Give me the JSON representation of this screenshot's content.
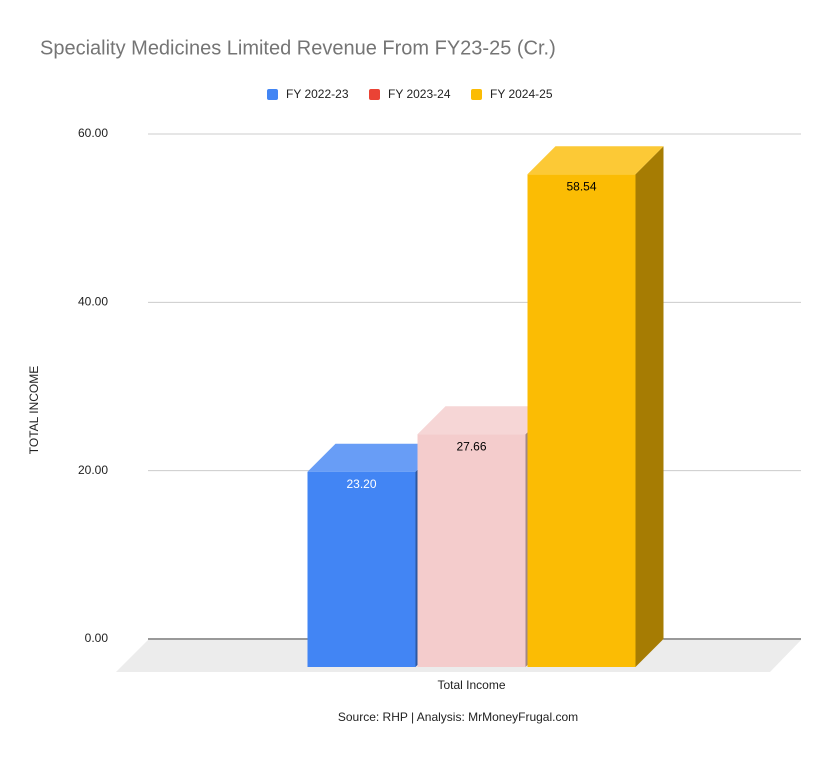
{
  "chart_data": {
    "type": "bar3d",
    "title": "Speciality Medicines Limited Revenue From FY23-25 (Cr.)",
    "ylabel": "TOTAL INCOME",
    "categories": [
      "Total Income"
    ],
    "source": "Source: RHP | Analysis: MrMoneyFrugal.com",
    "series": [
      {
        "name": "FY 2022-23",
        "color": "#4285f4",
        "fill": "#4285f4",
        "label_color": "#ffffff",
        "values": [
          23.2
        ],
        "value_labels": [
          "23.20"
        ]
      },
      {
        "name": "FY 2023-24",
        "color": "#ea4335",
        "fill": "#f4cccc",
        "label_color": "#000000",
        "values": [
          27.66
        ],
        "value_labels": [
          "27.66"
        ]
      },
      {
        "name": "FY 2024-25",
        "color": "#fbbc04",
        "fill": "#fbbc04",
        "label_color": "#000000",
        "values": [
          58.54
        ],
        "value_labels": [
          "58.54"
        ]
      }
    ],
    "ylim": [
      0,
      60
    ],
    "yticks": [
      {
        "value": 0,
        "label": "0.00"
      },
      {
        "value": 20,
        "label": "20.00"
      },
      {
        "value": 40,
        "label": "40.00"
      },
      {
        "value": 60,
        "label": "60.00"
      }
    ],
    "grid": true,
    "legend": "top"
  }
}
